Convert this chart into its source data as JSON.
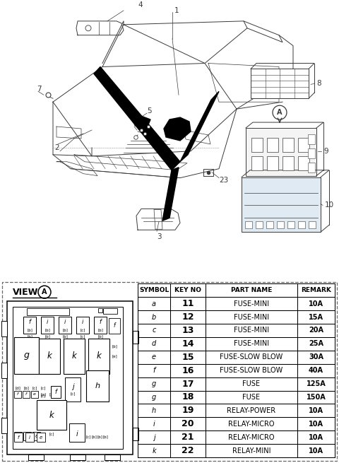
{
  "bg_color": "#ffffff",
  "lc": "#3a3a3a",
  "table_data": [
    {
      "symbol": "a",
      "key_no": "11",
      "part_name": "FUSE-MINI",
      "remark": "10A"
    },
    {
      "symbol": "b",
      "key_no": "12",
      "part_name": "FUSE-MINI",
      "remark": "15A"
    },
    {
      "symbol": "c",
      "key_no": "13",
      "part_name": "FUSE-MINI",
      "remark": "20A"
    },
    {
      "symbol": "d",
      "key_no": "14",
      "part_name": "FUSE-MINI",
      "remark": "25A"
    },
    {
      "symbol": "e",
      "key_no": "15",
      "part_name": "FUSE-SLOW BLOW",
      "remark": "30A"
    },
    {
      "symbol": "f",
      "key_no": "16",
      "part_name": "FUSE-SLOW BLOW",
      "remark": "40A"
    },
    {
      "symbol": "g",
      "key_no": "17",
      "part_name": "FUSE",
      "remark": "125A"
    },
    {
      "symbol": "g",
      "key_no": "18",
      "part_name": "FUSE",
      "remark": "150A"
    },
    {
      "symbol": "h",
      "key_no": "19",
      "part_name": "RELAY-POWER",
      "remark": "10A"
    },
    {
      "symbol": "i",
      "key_no": "20",
      "part_name": "RELAY-MICRO",
      "remark": "10A"
    },
    {
      "symbol": "j",
      "key_no": "21",
      "part_name": "RELAY-MICRO",
      "remark": "10A"
    },
    {
      "symbol": "k",
      "key_no": "22",
      "part_name": "RELAY-MINI",
      "remark": "10A"
    }
  ],
  "col_headers": [
    "SYMBOL",
    "KEY NO",
    "PART NAME",
    "REMARK"
  ],
  "fig_width": 4.8,
  "fig_height": 6.55
}
